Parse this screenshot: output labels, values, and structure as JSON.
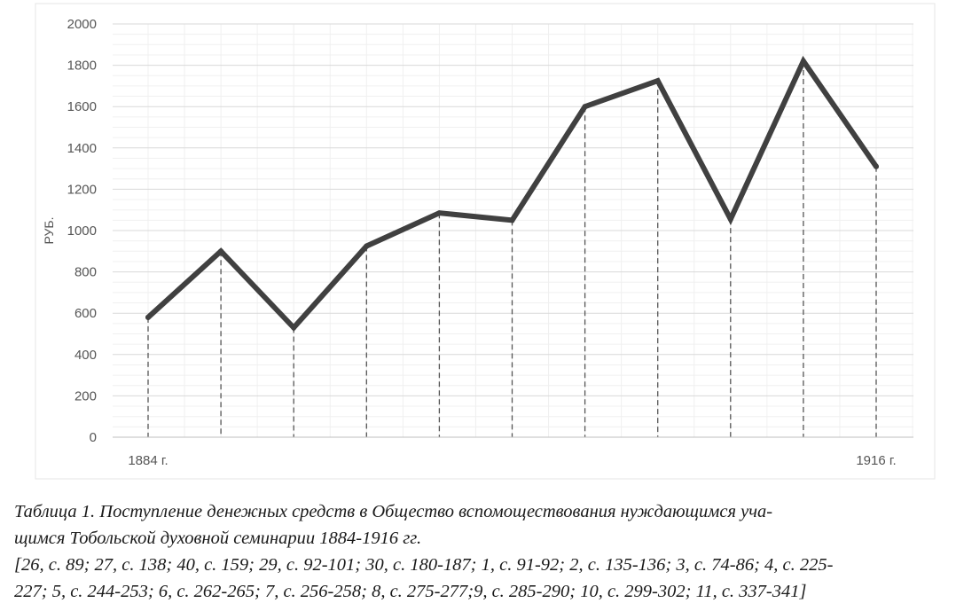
{
  "chart_data": {
    "type": "line",
    "ylabel": "РУБ.",
    "ylim": [
      0,
      2000
    ],
    "yticks": [
      0,
      200,
      400,
      600,
      800,
      1000,
      1200,
      1400,
      1600,
      1800,
      2000
    ],
    "x_start_label": "1884 г.",
    "x_end_label": "1916 г.",
    "values": [
      580,
      900,
      530,
      925,
      1085,
      1050,
      1600,
      1725,
      1055,
      1820,
      1310
    ],
    "grid": true,
    "drop_lines": true,
    "line_color": "#404040"
  },
  "caption": {
    "line1": "Таблица 1. Поступление денежных средств в Общество вспомоществования нуждающимся уча-",
    "line2": "щимся Тобольской духовной семинарии 1884-1916 гг.",
    "line3": "[26, с. 89; 27, с. 138; 40, с. 159; 29, с. 92-101; 30, с. 180-187; 1, с. 91-92; 2, с. 135-136; 3, с. 74-86; 4, с. 225-",
    "line4": "227; 5, с. 244-253; 6, с. 262-265; 7, с. 256-258; 8, с. 275-277;9, с. 285-290; 10, с. 299-302; 11, с. 337-341]"
  }
}
